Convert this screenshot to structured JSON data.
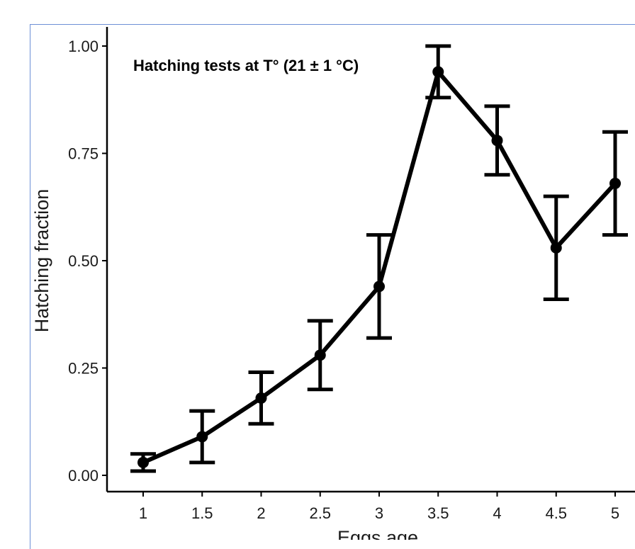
{
  "chart_data": {
    "type": "line",
    "annotation": "Hatching tests at T° (21 ± 1 °C)",
    "xlabel": "Eggs age",
    "ylabel": "Hatching fraction",
    "x": [
      1,
      1.5,
      2,
      2.5,
      3,
      3.5,
      4,
      4.5,
      5
    ],
    "x_tick_labels": [
      "1",
      "1.5",
      "2",
      "2.5",
      "3",
      "3.5",
      "4",
      "4.5",
      "5"
    ],
    "y_ticks": [
      0,
      0.25,
      0.5,
      0.75,
      1.0
    ],
    "y_tick_labels": [
      "0.00",
      "0.25",
      "0.50",
      "0.75",
      "1.00"
    ],
    "ylim": [
      0,
      1.0
    ],
    "series": [
      {
        "values": [
          0.03,
          0.09,
          0.18,
          0.28,
          0.44,
          0.94,
          0.78,
          0.53,
          0.68
        ],
        "error_low": [
          0.01,
          0.03,
          0.12,
          0.2,
          0.32,
          0.88,
          0.7,
          0.41,
          0.56
        ],
        "error_high": [
          0.05,
          0.15,
          0.24,
          0.36,
          0.56,
          1.0,
          0.86,
          0.65,
          0.8
        ]
      }
    ],
    "grid": false,
    "line_color": "#000000"
  }
}
